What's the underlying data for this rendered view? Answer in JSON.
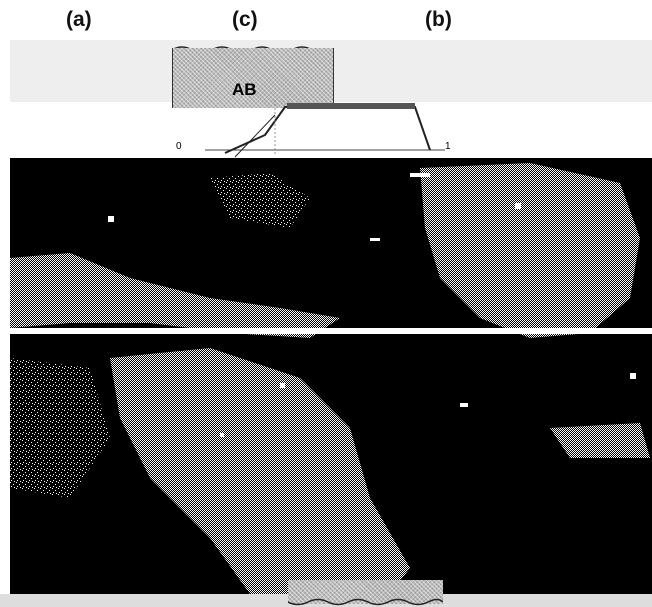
{
  "panels": {
    "a": "(a)",
    "c": "(c)",
    "b": "(b)"
  },
  "sample_label": "AB",
  "ticks": {
    "zero": "0",
    "one": "1"
  },
  "colors": {
    "background": "#ffffff",
    "field": "#000000",
    "texture_light": "#bbbbbb",
    "band": "#eeeeee"
  }
}
